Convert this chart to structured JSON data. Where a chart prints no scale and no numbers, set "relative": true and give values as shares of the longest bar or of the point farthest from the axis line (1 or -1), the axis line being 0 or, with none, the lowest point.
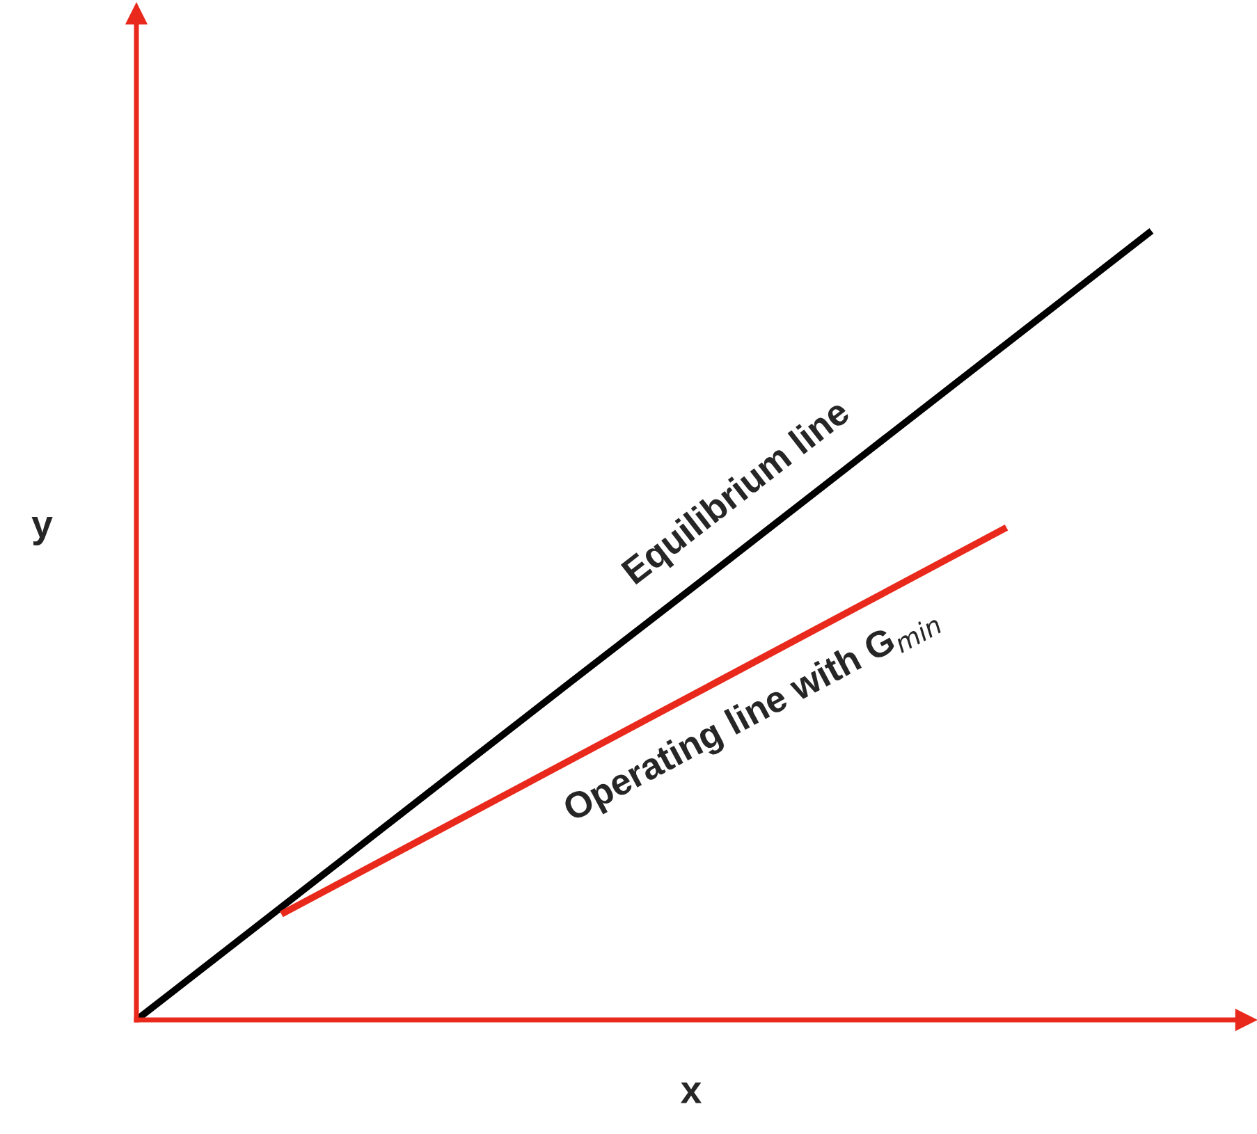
{
  "chart_data": {
    "type": "line",
    "relative": true,
    "xlabel": "x",
    "ylabel": "y",
    "categories": [
      null,
      null,
      null,
      null,
      null,
      null,
      null,
      null
    ],
    "series": [
      {
        "values": [
          0,
          0.143,
          0.286,
          0.429,
          0.571,
          0.714,
          0.857,
          1
        ],
        "color": "#000000"
      },
      {
        "values": [
          null,
          0.134,
          0.232,
          0.33,
          0.428,
          0.526,
          0.624,
          null
        ],
        "color": "#e8291c"
      }
    ],
    "annotations": [
      "Equilibrium line",
      "Operating line with G$_{min}$"
    ]
  }
}
